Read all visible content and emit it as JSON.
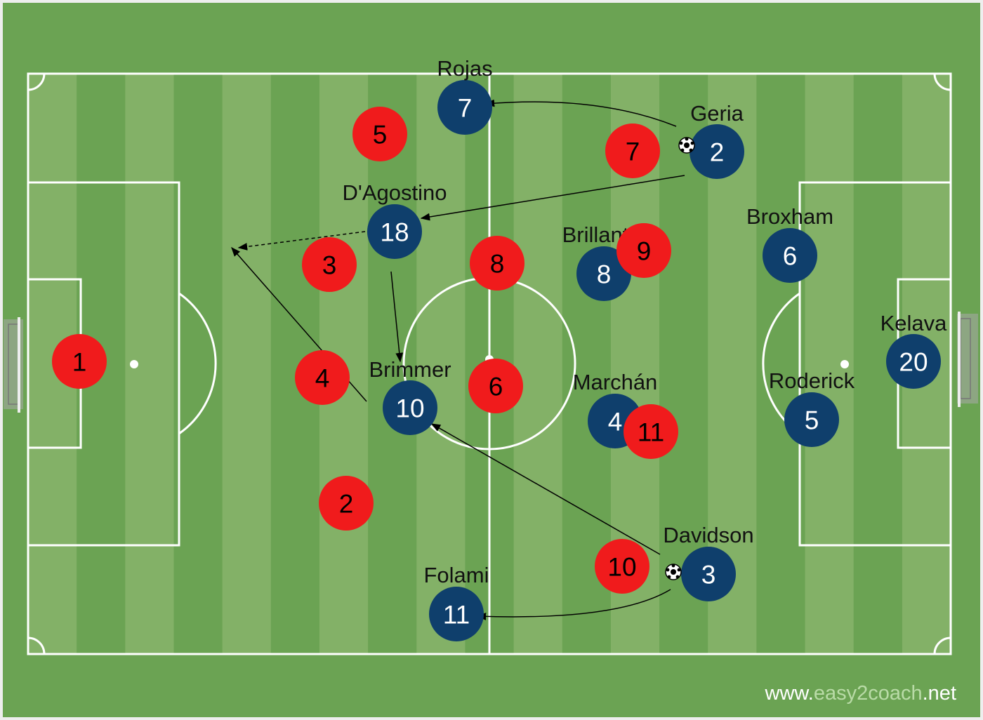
{
  "colors": {
    "grass_dark": "#6ba353",
    "grass_light": "#83b167",
    "lines": "#ffffff",
    "red_team": "#f01b1c",
    "blue_team": "#0f3f6c"
  },
  "red_team": [
    {
      "number": "1"
    },
    {
      "number": "5"
    },
    {
      "number": "7"
    },
    {
      "number": "3"
    },
    {
      "number": "8"
    },
    {
      "number": "9"
    },
    {
      "number": "4"
    },
    {
      "number": "6"
    },
    {
      "number": "11"
    },
    {
      "number": "2"
    },
    {
      "number": "10"
    }
  ],
  "blue_team": [
    {
      "number": "7",
      "name": "Rojas"
    },
    {
      "number": "2",
      "name": "Geria"
    },
    {
      "number": "18",
      "name": "D'Agostino"
    },
    {
      "number": "8",
      "name": "Brillant"
    },
    {
      "number": "6",
      "name": "Broxham"
    },
    {
      "number": "20",
      "name": "Kelava"
    },
    {
      "number": "10",
      "name": "Brimmer"
    },
    {
      "number": "4",
      "name": "Marchán"
    },
    {
      "number": "5",
      "name": "Roderick"
    },
    {
      "number": "3",
      "name": "Davidson"
    },
    {
      "number": "11",
      "name": "Folami"
    }
  ],
  "ball_icons": [
    "soccer-ball-icon",
    "soccer-ball-icon"
  ],
  "watermark": {
    "prefix": "www.",
    "brand": "easy2coach",
    "suffix": ".net"
  }
}
